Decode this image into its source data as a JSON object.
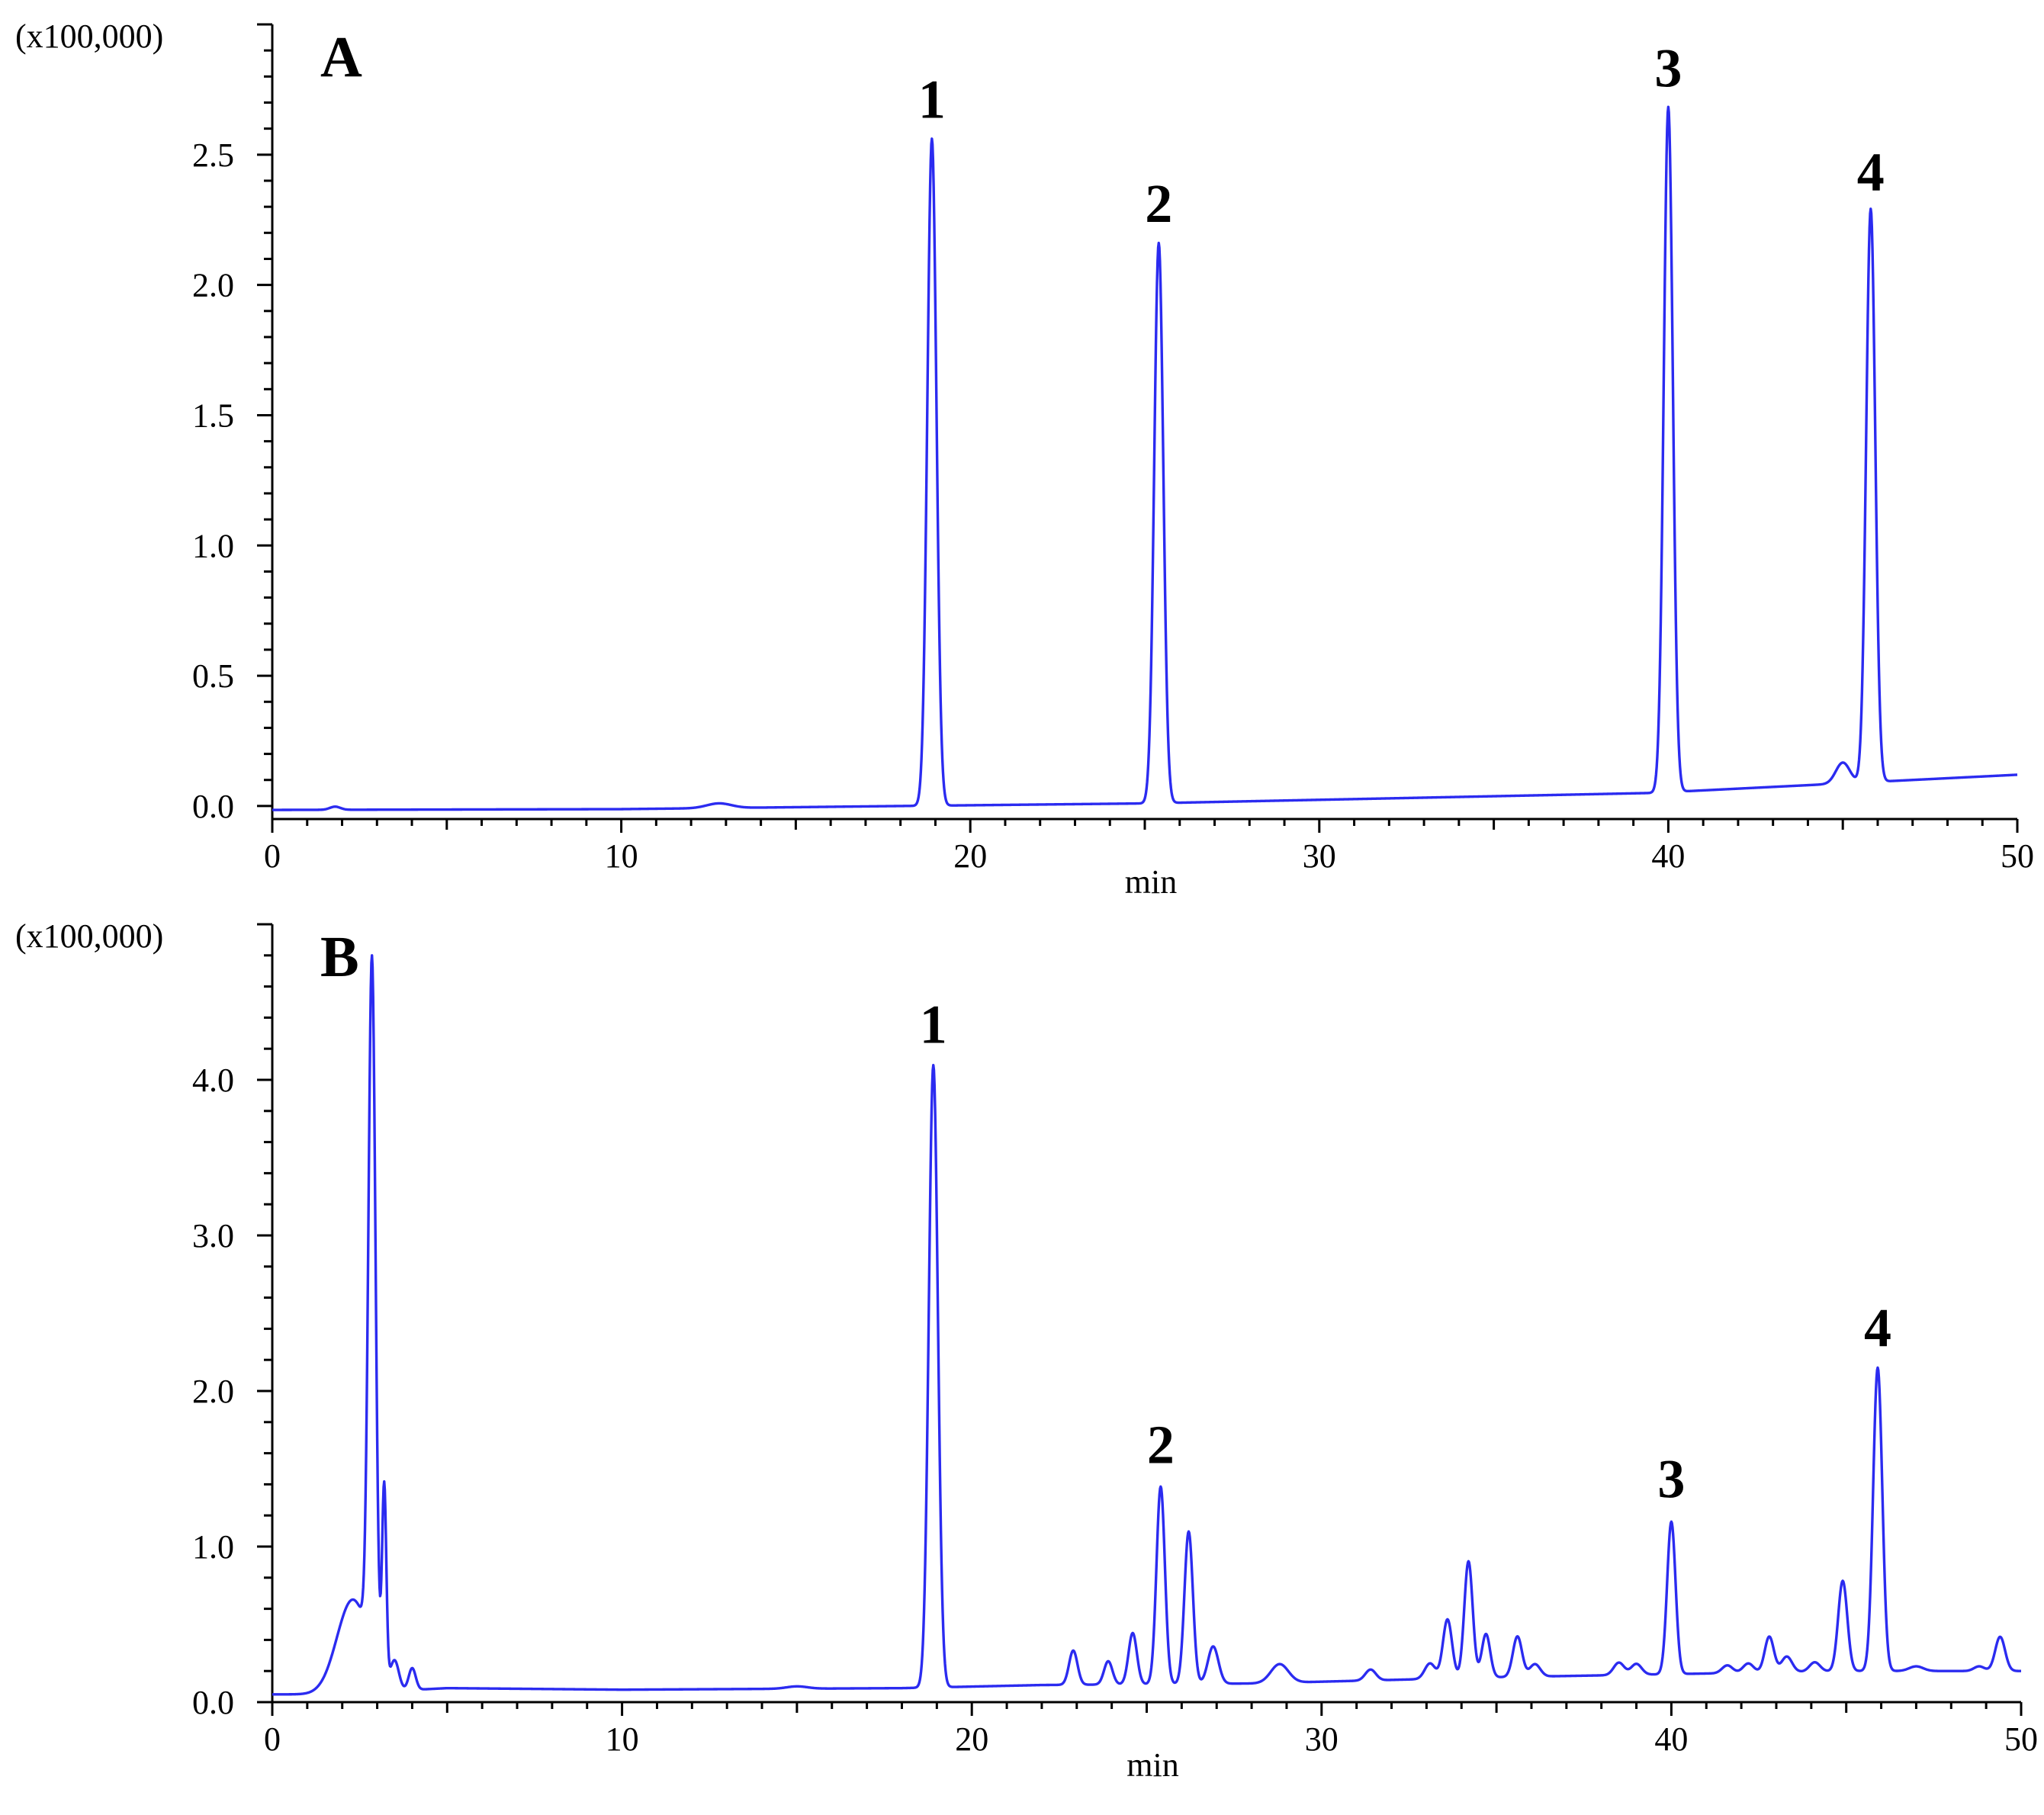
{
  "colors": {
    "trace": "#2b2bf0",
    "axis": "#000000"
  },
  "chart_data": [
    {
      "type": "line",
      "panel_label": "A",
      "xlabel": "min",
      "ylabel": "",
      "y_multiplier": "(x100,000)",
      "xlim": [
        0,
        50
      ],
      "ylim": [
        -0.05,
        3.0
      ],
      "x_ticks": [
        0,
        10,
        20,
        30,
        40,
        50
      ],
      "x_tick_labels": [
        "0",
        "10",
        "20",
        "30",
        "40",
        "50"
      ],
      "y_ticks": [
        0.0,
        0.5,
        1.0,
        1.5,
        2.0,
        2.5
      ],
      "y_tick_labels": [
        "0.0",
        "0.5",
        "1.0",
        "1.5",
        "2.0",
        "2.5"
      ],
      "grid": false,
      "baseline": [
        [
          0,
          -0.015
        ],
        [
          10,
          -0.012
        ],
        [
          18,
          0.0
        ],
        [
          25,
          0.01
        ],
        [
          39.5,
          0.05
        ],
        [
          44,
          0.08
        ],
        [
          50,
          0.12
        ]
      ],
      "peaks": [
        {
          "x": 1.8,
          "height": 0.012,
          "width": 0.15
        },
        {
          "x": 12.8,
          "height": 0.018,
          "width": 0.35
        },
        {
          "x": 18.9,
          "height": 2.56,
          "width": 0.13
        },
        {
          "x": 25.4,
          "height": 2.15,
          "width": 0.13
        },
        {
          "x": 40.0,
          "height": 2.63,
          "width": 0.13
        },
        {
          "x": 45.0,
          "height": 0.08,
          "width": 0.2
        },
        {
          "x": 45.8,
          "height": 2.2,
          "width": 0.13
        }
      ],
      "series": [
        {
          "peaks_labeled": [
            {
              "label": "1",
              "x": 18.9,
              "y": 2.56
            },
            {
              "label": "2",
              "x": 25.4,
              "y": 2.16
            },
            {
              "label": "3",
              "x": 40.0,
              "y": 2.68
            },
            {
              "label": "4",
              "x": 45.8,
              "y": 2.28
            }
          ]
        }
      ]
    },
    {
      "type": "line",
      "panel_label": "B",
      "xlabel": "min",
      "ylabel": "",
      "y_multiplier": "(x100,000)",
      "xlim": [
        0,
        50
      ],
      "ylim": [
        0.0,
        5.0
      ],
      "x_ticks": [
        0,
        10,
        20,
        30,
        40,
        50
      ],
      "x_tick_labels": [
        "0",
        "10",
        "20",
        "30",
        "40",
        "50"
      ],
      "y_ticks": [
        0.0,
        1.0,
        2.0,
        3.0,
        4.0
      ],
      "y_tick_labels": [
        "0.0",
        "1.0",
        "2.0",
        "3.0",
        "4.0"
      ],
      "grid": false,
      "baseline": [
        [
          0,
          0.05
        ],
        [
          1.5,
          0.05
        ],
        [
          5,
          0.09
        ],
        [
          10,
          0.08
        ],
        [
          18,
          0.09
        ],
        [
          22,
          0.11
        ],
        [
          28,
          0.12
        ],
        [
          35,
          0.16
        ],
        [
          40,
          0.18
        ],
        [
          45,
          0.2
        ],
        [
          50,
          0.2
        ]
      ],
      "peaks": [
        {
          "x": 2.3,
          "height": 0.6,
          "width": 0.45
        },
        {
          "x": 2.85,
          "height": 4.45,
          "width": 0.1
        },
        {
          "x": 3.2,
          "height": 1.25,
          "width": 0.06
        },
        {
          "x": 3.5,
          "height": 0.18,
          "width": 0.12
        },
        {
          "x": 4.0,
          "height": 0.14,
          "width": 0.1
        },
        {
          "x": 15.0,
          "height": 0.015,
          "width": 0.3
        },
        {
          "x": 18.9,
          "height": 4.0,
          "width": 0.13
        },
        {
          "x": 22.9,
          "height": 0.22,
          "width": 0.12
        },
        {
          "x": 23.9,
          "height": 0.15,
          "width": 0.12
        },
        {
          "x": 24.6,
          "height": 0.33,
          "width": 0.12
        },
        {
          "x": 25.4,
          "height": 1.27,
          "width": 0.12
        },
        {
          "x": 26.2,
          "height": 0.98,
          "width": 0.12
        },
        {
          "x": 26.9,
          "height": 0.24,
          "width": 0.15
        },
        {
          "x": 28.8,
          "height": 0.12,
          "width": 0.25
        },
        {
          "x": 31.4,
          "height": 0.07,
          "width": 0.15
        },
        {
          "x": 33.1,
          "height": 0.1,
          "width": 0.15
        },
        {
          "x": 33.6,
          "height": 0.38,
          "width": 0.13
        },
        {
          "x": 34.2,
          "height": 0.75,
          "width": 0.12
        },
        {
          "x": 34.7,
          "height": 0.28,
          "width": 0.12
        },
        {
          "x": 35.6,
          "height": 0.26,
          "width": 0.13
        },
        {
          "x": 36.1,
          "height": 0.08,
          "width": 0.15
        },
        {
          "x": 38.5,
          "height": 0.08,
          "width": 0.15
        },
        {
          "x": 39.0,
          "height": 0.07,
          "width": 0.15
        },
        {
          "x": 40.0,
          "height": 0.98,
          "width": 0.12
        },
        {
          "x": 41.6,
          "height": 0.05,
          "width": 0.15
        },
        {
          "x": 42.2,
          "height": 0.06,
          "width": 0.15
        },
        {
          "x": 42.8,
          "height": 0.23,
          "width": 0.13
        },
        {
          "x": 43.3,
          "height": 0.1,
          "width": 0.15
        },
        {
          "x": 44.1,
          "height": 0.06,
          "width": 0.15
        },
        {
          "x": 44.9,
          "height": 0.58,
          "width": 0.13
        },
        {
          "x": 45.9,
          "height": 1.95,
          "width": 0.13
        },
        {
          "x": 47.0,
          "height": 0.03,
          "width": 0.2
        },
        {
          "x": 48.8,
          "height": 0.03,
          "width": 0.15
        },
        {
          "x": 49.4,
          "height": 0.22,
          "width": 0.14
        }
      ],
      "series": [
        {
          "peaks_labeled": [
            {
              "label": "1",
              "x": 18.9,
              "y": 4.1
            },
            {
              "label": "2",
              "x": 25.4,
              "y": 1.4
            },
            {
              "label": "3",
              "x": 40.0,
              "y": 1.18
            },
            {
              "label": "4",
              "x": 45.9,
              "y": 2.15
            }
          ]
        }
      ]
    }
  ]
}
